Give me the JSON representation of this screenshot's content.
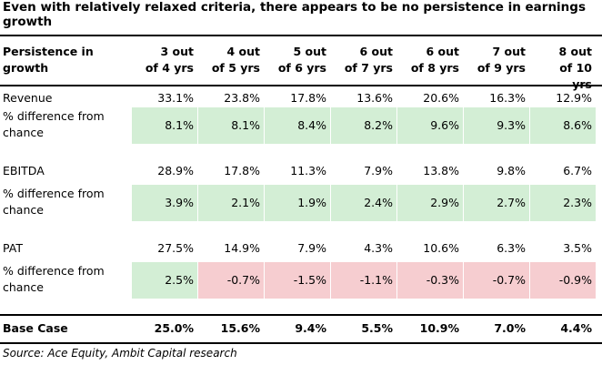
{
  "title": "Even with relatively relaxed criteria, there appears to be no persistence in earnings growth",
  "table": {
    "header": [
      "Persistence in growth",
      "3 out of 4 yrs",
      "4 out of 5 yrs",
      "5 out of 6 yrs",
      "6 out of 7 yrs",
      "6 out of 8 yrs",
      "7 out of 9 yrs",
      "8 out of 10 yrs"
    ],
    "rows": [
      {
        "cells": [
          "Revenue",
          "33.1%",
          "23.8%",
          "17.8%",
          "13.6%",
          "20.6%",
          "16.3%",
          "12.9%"
        ]
      },
      {
        "cells": [
          "% difference from chance",
          "8.1%",
          "8.1%",
          "8.4%",
          "8.2%",
          "9.6%",
          "9.3%",
          "8.6%"
        ],
        "fills": [
          "#d3eed5",
          "#d3eed5",
          "#d3eed5",
          "#d3eed5",
          "#d3eed5",
          "#d3eed5",
          "#d3eed5"
        ]
      },
      {
        "cells": [
          "EBITDA",
          "28.9%",
          "17.8%",
          "11.3%",
          "7.9%",
          "13.8%",
          "9.8%",
          "6.7%"
        ]
      },
      {
        "cells": [
          "% difference from chance",
          "3.9%",
          "2.1%",
          "1.9%",
          "2.4%",
          "2.9%",
          "2.7%",
          "2.3%"
        ],
        "fills": [
          "#d3eed5",
          "#d3eed5",
          "#d3eed5",
          "#d3eed5",
          "#d3eed5",
          "#d3eed5",
          "#d3eed5"
        ]
      },
      {
        "cells": [
          "PAT",
          "27.5%",
          "14.9%",
          "7.9%",
          "4.3%",
          "10.6%",
          "6.3%",
          "3.5%"
        ]
      },
      {
        "cells": [
          "% difference from chance",
          "2.5%",
          "-0.7%",
          "-1.5%",
          "-1.1%",
          "-0.3%",
          "-0.7%",
          "-0.9%"
        ],
        "fills": [
          "#d3eed5",
          "#f6cdd0",
          "#f6cdd0",
          "#f6cdd0",
          "#f6cdd0",
          "#f6cdd0",
          "#f6cdd0"
        ]
      }
    ],
    "footer_row": [
      "Base Case",
      "25.0%",
      "15.6%",
      "9.4%",
      "5.5%",
      "10.9%",
      "7.0%",
      "4.4%"
    ]
  },
  "source": "Source: Ace Equity, Ambit Capital research"
}
